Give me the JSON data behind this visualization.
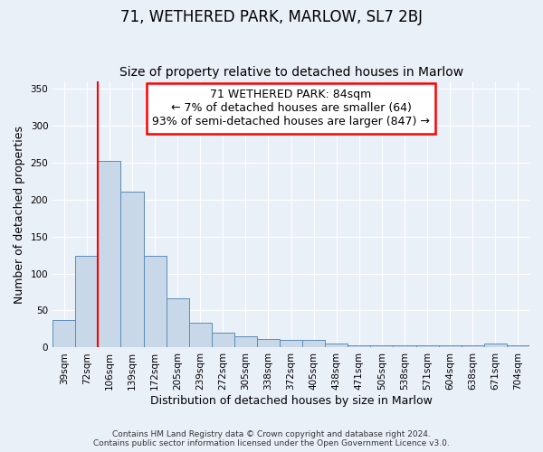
{
  "title": "71, WETHERED PARK, MARLOW, SL7 2BJ",
  "subtitle": "Size of property relative to detached houses in Marlow",
  "xlabel": "Distribution of detached houses by size in Marlow",
  "ylabel": "Number of detached properties",
  "bar_labels": [
    "39sqm",
    "72sqm",
    "106sqm",
    "139sqm",
    "172sqm",
    "205sqm",
    "239sqm",
    "272sqm",
    "305sqm",
    "338sqm",
    "372sqm",
    "405sqm",
    "438sqm",
    "471sqm",
    "505sqm",
    "538sqm",
    "571sqm",
    "604sqm",
    "638sqm",
    "671sqm",
    "704sqm"
  ],
  "bar_values": [
    37,
    124,
    252,
    211,
    124,
    66,
    34,
    20,
    15,
    11,
    10,
    10,
    5,
    3,
    3,
    3,
    3,
    3,
    3,
    5,
    3
  ],
  "bar_color": "#c8d8e8",
  "bar_edge_color": "#5b8db8",
  "bar_width": 1.0,
  "ylim": [
    0,
    360
  ],
  "yticks": [
    0,
    50,
    100,
    150,
    200,
    250,
    300,
    350
  ],
  "annotation_title": "71 WETHERED PARK: 84sqm",
  "annotation_line1": "← 7% of detached houses are smaller (64)",
  "annotation_line2": "93% of semi-detached houses are larger (847) →",
  "annotation_box_color": "white",
  "annotation_box_edge": "red",
  "background_color": "#eaf0f8",
  "title_fontsize": 12,
  "subtitle_fontsize": 10,
  "axis_label_fontsize": 9,
  "tick_fontsize": 7.5,
  "footer_text": "Contains HM Land Registry data © Crown copyright and database right 2024.\nContains public sector information licensed under the Open Government Licence v3.0."
}
